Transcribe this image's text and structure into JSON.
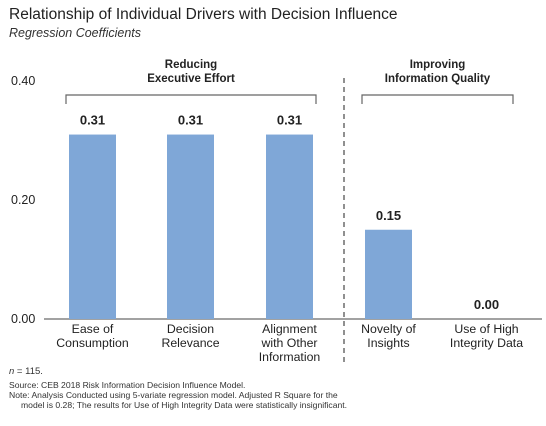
{
  "chart_data": {
    "type": "bar",
    "title": "Relationship of Individual Drivers with Decision Influence",
    "subtitle": "Regression Coefficients",
    "categories": [
      [
        "Ease of",
        "Consumption"
      ],
      [
        "Decision",
        "Relevance"
      ],
      [
        "Alignment",
        "with Other",
        "Information"
      ],
      [
        "Novelty of",
        "Insights"
      ],
      [
        "Use of High",
        "Integrity Data"
      ]
    ],
    "values": [
      0.31,
      0.31,
      0.31,
      0.15,
      0.0
    ],
    "value_labels": [
      "0.31",
      "0.31",
      "0.31",
      "0.15",
      "0.00"
    ],
    "ylim": [
      0,
      0.4
    ],
    "yticks": [
      "0.00",
      "0.20",
      "0.40"
    ],
    "bar_color": "#7fa7d7",
    "groups": [
      {
        "label": [
          "Reducing",
          "Executive Effort"
        ],
        "from": 0,
        "to": 2
      },
      {
        "label": [
          "Improving",
          "Information Quality"
        ],
        "from": 3,
        "to": 4
      }
    ],
    "separator_after_index": 2,
    "grid": false
  },
  "notes": {
    "n_prefix": "n",
    "n_suffix": " = 115.",
    "source": "Source: CEB 2018 Risk Information Decision Influence Model.",
    "note_line1": "Note: Analysis Conducted using 5-variate regression model. Adjusted R Square for the",
    "note_line2": "model is 0.28; The results for Use of High Integrity Data were statistically insignificant."
  }
}
